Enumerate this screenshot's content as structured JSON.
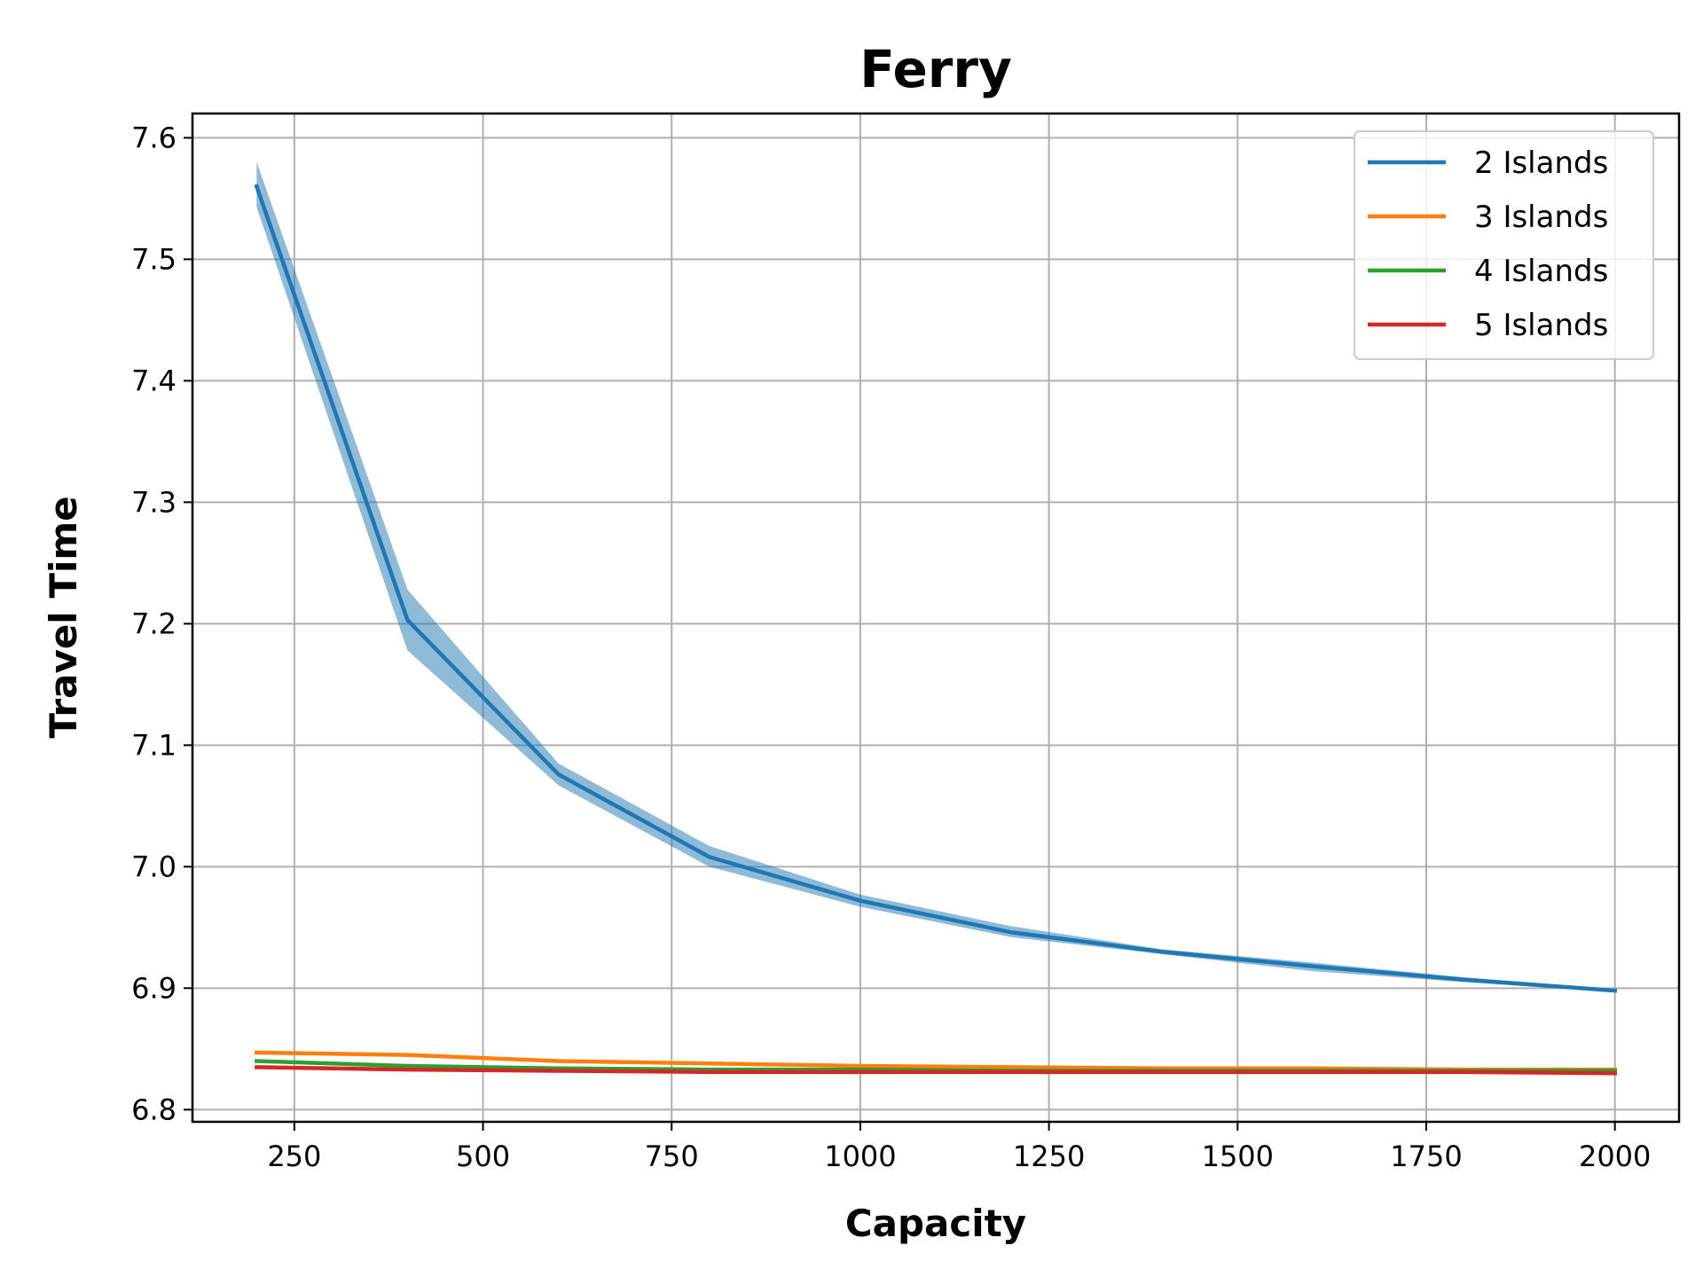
{
  "chart_data": {
    "type": "line",
    "title": "Ferry",
    "xlabel": "Capacity",
    "ylabel": "Travel Time",
    "xlim": [
      115,
      2085
    ],
    "ylim": [
      6.79,
      7.62
    ],
    "xticks": [
      "250",
      "500",
      "750",
      "1000",
      "1250",
      "1500",
      "1750",
      "2000"
    ],
    "yticks": [
      "6.8",
      "6.9",
      "7.0",
      "7.1",
      "7.2",
      "7.3",
      "7.4",
      "7.5",
      "7.6"
    ],
    "grid": true,
    "legend_position": "upper right",
    "x": [
      200,
      400,
      600,
      800,
      1000,
      1200,
      1400,
      1600,
      1800,
      2000
    ],
    "series": [
      {
        "name": "2 Islands",
        "color": "#1f77b4",
        "values": [
          7.56,
          7.203,
          7.076,
          7.008,
          6.972,
          6.946,
          6.93,
          6.918,
          6.907,
          6.898
        ],
        "lower": [
          7.543,
          7.178,
          7.067,
          7.0,
          6.967,
          6.942,
          6.928,
          6.914,
          6.905,
          6.897
        ],
        "upper": [
          7.58,
          7.228,
          7.085,
          7.017,
          6.977,
          6.951,
          6.932,
          6.921,
          6.909,
          6.899
        ]
      },
      {
        "name": "3 Islands",
        "color": "#ff7f0e",
        "values": [
          6.847,
          6.845,
          6.84,
          6.838,
          6.836,
          6.835,
          6.834,
          6.834,
          6.833,
          6.833
        ]
      },
      {
        "name": "4 Islands",
        "color": "#2ca02c",
        "values": [
          6.84,
          6.836,
          6.834,
          6.833,
          6.833,
          6.832,
          6.832,
          6.832,
          6.832,
          6.832
        ]
      },
      {
        "name": "5 Islands",
        "color": "#d62728",
        "values": [
          6.835,
          6.833,
          6.832,
          6.831,
          6.831,
          6.831,
          6.831,
          6.831,
          6.831,
          6.83
        ]
      }
    ]
  }
}
